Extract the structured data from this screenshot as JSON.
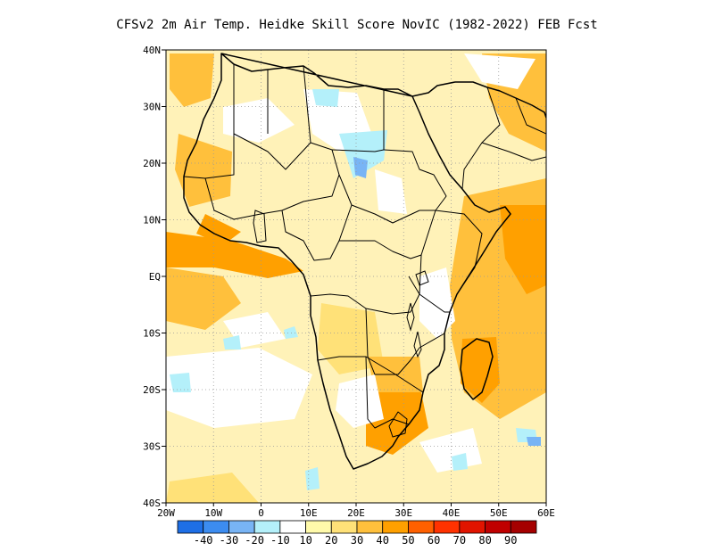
{
  "title": "CFSv2  2m Air Temp. Heidke Skill Score NovIC (1982-2022) FEB Fcst",
  "lat_labels": [
    "40N",
    "30N",
    "20N",
    "10N",
    "EQ",
    "10S",
    "20S",
    "30S",
    "40S"
  ],
  "lon_labels": [
    "20W",
    "10W",
    "0",
    "10E",
    "20E",
    "30E",
    "40E",
    "50E",
    "60E"
  ],
  "colorbar": {
    "labels": [
      "-40",
      "-30",
      "-20",
      "-10",
      "10",
      "20",
      "30",
      "40",
      "50",
      "60",
      "70",
      "80",
      "90"
    ],
    "colors": [
      "#1e6fe6",
      "#3c8cf0",
      "#78b4f5",
      "#b4f0fa",
      "#ffffff",
      "#fffaaa",
      "#ffe178",
      "#ffc03c",
      "#ffa000",
      "#ff6000",
      "#ff3200",
      "#e11400",
      "#c00000",
      "#a50000"
    ]
  },
  "map": {
    "region": "Africa",
    "lat_range": [
      -40,
      40
    ],
    "lon_range": [
      -20,
      60
    ],
    "variable": "2m Air Temp. Heidke Skill Score"
  }
}
